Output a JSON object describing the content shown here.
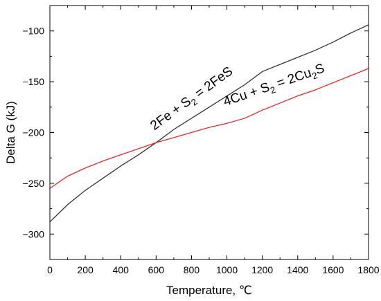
{
  "chart_data": {
    "type": "line",
    "xlabel": "Temperature, ℃",
    "ylabel": "Delta G (kJ)",
    "xlim": [
      0,
      1800
    ],
    "ylim": [
      -325,
      -75
    ],
    "xticks": [
      0,
      200,
      400,
      600,
      800,
      1000,
      1200,
      1400,
      1600,
      1800
    ],
    "yticks": [
      -300,
      -250,
      -200,
      -150,
      -100
    ],
    "grid": false,
    "legend": "none",
    "series": [
      {
        "color": "#333333",
        "x": [
          0,
          100,
          200,
          300,
          400,
          500,
          600,
          700,
          800,
          900,
          1000,
          1100,
          1200,
          1300,
          1400,
          1500,
          1600,
          1700,
          1800
        ],
        "y": [
          -288,
          -271,
          -257,
          -245,
          -233,
          -222,
          -210,
          -197,
          -186,
          -175,
          -164,
          -153,
          -140,
          -133,
          -126,
          -119,
          -111,
          -102,
          -94
        ]
      },
      {
        "color": "#ee2222",
        "x": [
          0,
          100,
          200,
          300,
          400,
          500,
          600,
          700,
          800,
          900,
          1000,
          1100,
          1200,
          1300,
          1400,
          1500,
          1600,
          1700,
          1800
        ],
        "y": [
          -255,
          -243,
          -235,
          -228,
          -222,
          -216,
          -210,
          -205,
          -200,
          -195,
          -191,
          -186,
          -178,
          -171,
          -164,
          -158,
          -151,
          -144,
          -137
        ]
      }
    ],
    "annotations": [
      {
        "parts": [
          {
            "t": "2Fe + S"
          },
          {
            "t": "2",
            "sub": true
          },
          {
            "t": " = 2FeS"
          }
        ],
        "x": 590,
        "y": -198,
        "angle": -36
      },
      {
        "parts": [
          {
            "t": "4Cu + S"
          },
          {
            "t": "2",
            "sub": true
          },
          {
            "t": " = 2Cu"
          },
          {
            "t": "2",
            "sub": true
          },
          {
            "t": "S"
          }
        ],
        "x": 990,
        "y": -174,
        "angle": -19
      }
    ]
  }
}
